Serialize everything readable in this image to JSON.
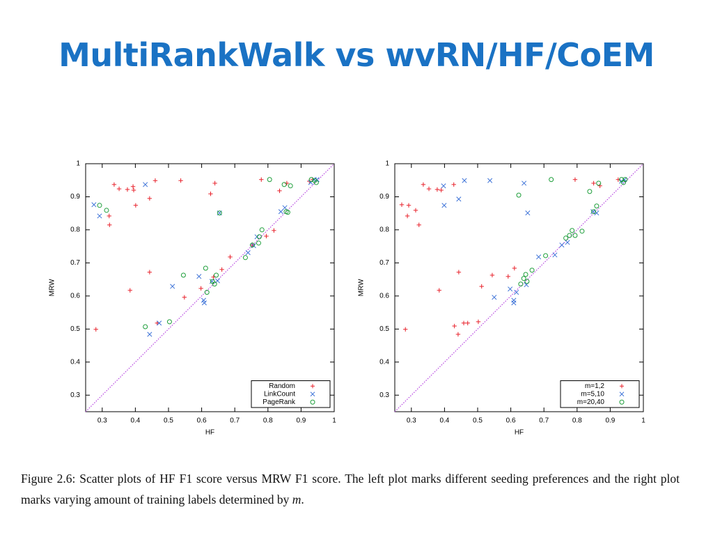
{
  "slide": {
    "title": "MultiRankWalk vs wvRN/HF/CoEM",
    "caption": "Figure 2.6: Scatter plots of HF F1 score versus MRW F1 score. The left plot marks different seeding preferences and the right plot marks varying amount of training labels determined by",
    "caption_variable": "m",
    "caption_end": "."
  },
  "chart_data": [
    {
      "type": "scatter",
      "x_label": "HF",
      "y_label": "MRW",
      "xlim": [
        0.25,
        1
      ],
      "ylim": [
        0.25,
        1
      ],
      "xticks": [
        0.3,
        0.4,
        0.5,
        0.6,
        0.7,
        0.8,
        0.9,
        1
      ],
      "yticks": [
        0.3,
        0.4,
        0.5,
        0.6,
        0.7,
        0.8,
        0.9,
        1
      ],
      "diagonal": true,
      "diagonal_color": "#b540e0",
      "legend": "bottom-right",
      "series": [
        {
          "name": "Random",
          "color": "#e8202a",
          "marker": "+",
          "x": [
            0.281,
            0.336,
            0.351,
            0.376,
            0.393,
            0.395,
            0.321,
            0.322,
            0.401,
            0.46,
            0.443,
            0.537,
            0.64,
            0.627,
            0.78,
            0.835,
            0.384,
            0.443,
            0.548,
            0.598,
            0.661,
            0.686,
            0.636,
            0.466,
            0.753,
            0.795,
            0.818,
            0.857,
            0.925,
            0.935
          ],
          "values": [
            0.499,
            0.937,
            0.924,
            0.922,
            0.931,
            0.92,
            0.842,
            0.815,
            0.874,
            0.949,
            0.895,
            0.949,
            0.941,
            0.909,
            0.952,
            0.918,
            0.617,
            0.672,
            0.596,
            0.623,
            0.68,
            0.718,
            0.657,
            0.518,
            0.754,
            0.781,
            0.798,
            0.941,
            0.947,
            0.952
          ]
        },
        {
          "name": "LinkCount",
          "color": "#3f74d8",
          "marker": "x",
          "x": [
            0.275,
            0.292,
            0.43,
            0.443,
            0.472,
            0.512,
            0.592,
            0.606,
            0.608,
            0.631,
            0.648,
            0.654,
            0.74,
            0.757,
            0.767,
            0.839,
            0.851,
            0.929,
            0.94,
            0.948
          ],
          "values": [
            0.876,
            0.842,
            0.937,
            0.484,
            0.518,
            0.629,
            0.659,
            0.587,
            0.579,
            0.644,
            0.646,
            0.851,
            0.731,
            0.752,
            0.779,
            0.855,
            0.867,
            0.943,
            0.952,
            0.952
          ]
        },
        {
          "name": "PageRank",
          "color": "#1d9e3a",
          "marker": "o",
          "x": [
            0.292,
            0.313,
            0.43,
            0.503,
            0.545,
            0.612,
            0.616,
            0.633,
            0.639,
            0.644,
            0.654,
            0.732,
            0.753,
            0.772,
            0.774,
            0.782,
            0.805,
            0.849,
            0.855,
            0.86,
            0.868,
            0.931,
            0.941,
            0.946
          ],
          "values": [
            0.874,
            0.859,
            0.507,
            0.522,
            0.663,
            0.684,
            0.611,
            0.644,
            0.636,
            0.663,
            0.851,
            0.716,
            0.754,
            0.76,
            0.779,
            0.8,
            0.952,
            0.937,
            0.855,
            0.853,
            0.933,
            0.952,
            0.949,
            0.943
          ]
        }
      ]
    },
    {
      "type": "scatter",
      "x_label": "HF",
      "y_label": "MRW",
      "xlim": [
        0.25,
        1
      ],
      "ylim": [
        0.25,
        1
      ],
      "xticks": [
        0.3,
        0.4,
        0.5,
        0.6,
        0.7,
        0.8,
        0.9,
        1
      ],
      "yticks": [
        0.3,
        0.4,
        0.5,
        0.6,
        0.7,
        0.8,
        0.9,
        1
      ],
      "diagonal": true,
      "diagonal_color": "#b540e0",
      "legend": "bottom-right",
      "series": [
        {
          "name": "m=1,2",
          "color": "#e8202a",
          "marker": "+",
          "x": [
            0.271,
            0.292,
            0.288,
            0.313,
            0.323,
            0.282,
            0.336,
            0.353,
            0.378,
            0.39,
            0.428,
            0.384,
            0.443,
            0.43,
            0.458,
            0.47,
            0.441,
            0.502,
            0.512,
            0.544,
            0.592,
            0.611,
            0.794,
            0.85,
            0.869,
            0.924
          ],
          "values": [
            0.876,
            0.874,
            0.842,
            0.859,
            0.815,
            0.499,
            0.937,
            0.924,
            0.922,
            0.92,
            0.937,
            0.617,
            0.672,
            0.509,
            0.518,
            0.518,
            0.484,
            0.522,
            0.629,
            0.663,
            0.659,
            0.684,
            0.952,
            0.941,
            0.933,
            0.952
          ]
        },
        {
          "name": "m=5,10",
          "color": "#3f74d8",
          "marker": "x",
          "x": [
            0.397,
            0.399,
            0.443,
            0.46,
            0.537,
            0.64,
            0.651,
            0.55,
            0.598,
            0.609,
            0.609,
            0.617,
            0.647,
            0.684,
            0.733,
            0.754,
            0.771,
            0.848,
            0.859,
            0.934,
            0.943
          ],
          "values": [
            0.933,
            0.874,
            0.893,
            0.949,
            0.949,
            0.941,
            0.851,
            0.596,
            0.621,
            0.587,
            0.579,
            0.611,
            0.634,
            0.718,
            0.724,
            0.754,
            0.762,
            0.855,
            0.851,
            0.947,
            0.952
          ]
        },
        {
          "name": "m=20,40",
          "color": "#1d9e3a",
          "marker": "o",
          "x": [
            0.624,
            0.722,
            0.838,
            0.865,
            0.63,
            0.639,
            0.645,
            0.649,
            0.664,
            0.705,
            0.766,
            0.777,
            0.785,
            0.794,
            0.815,
            0.85,
            0.859,
            0.934,
            0.945,
            0.94
          ],
          "values": [
            0.905,
            0.952,
            0.916,
            0.941,
            0.636,
            0.653,
            0.665,
            0.644,
            0.678,
            0.722,
            0.775,
            0.783,
            0.798,
            0.783,
            0.796,
            0.855,
            0.872,
            0.952,
            0.952,
            0.943
          ]
        }
      ]
    }
  ]
}
